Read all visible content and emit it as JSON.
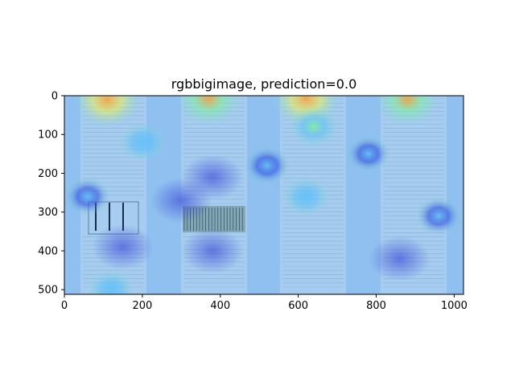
{
  "chart_data": {
    "type": "heatmap",
    "title": "rgbbigimage, prediction=0.0",
    "xlim": [
      0,
      1024
    ],
    "ylim": [
      512,
      0
    ],
    "x_ticks": [
      0,
      200,
      400,
      600,
      800,
      1000
    ],
    "y_ticks": [
      0,
      100,
      200,
      300,
      400,
      500
    ],
    "x_tick_labels": [
      "0",
      "200",
      "400",
      "600",
      "800",
      "1000"
    ],
    "y_tick_labels": [
      "0",
      "100",
      "200",
      "300",
      "400",
      "500"
    ],
    "colormap": "jet",
    "background_image": "four document pages side by side",
    "hotspots": [
      {
        "x": 110,
        "y": 10,
        "intensity": 0.95
      },
      {
        "x": 370,
        "y": 8,
        "intensity": 0.9
      },
      {
        "x": 620,
        "y": 8,
        "intensity": 0.95
      },
      {
        "x": 880,
        "y": 10,
        "intensity": 0.85
      },
      {
        "x": 640,
        "y": 80,
        "intensity": 0.55
      },
      {
        "x": 200,
        "y": 120,
        "intensity": 0.5
      },
      {
        "x": 60,
        "y": 260,
        "intensity": 0.45
      },
      {
        "x": 620,
        "y": 260,
        "intensity": 0.5
      },
      {
        "x": 960,
        "y": 310,
        "intensity": 0.45
      },
      {
        "x": 120,
        "y": 500,
        "intensity": 0.5
      },
      {
        "x": 520,
        "y": 180,
        "intensity": 0.45
      },
      {
        "x": 780,
        "y": 150,
        "intensity": 0.4
      }
    ],
    "coldspots": [
      {
        "x": 150,
        "y": 390
      },
      {
        "x": 380,
        "y": 210
      },
      {
        "x": 380,
        "y": 400
      },
      {
        "x": 860,
        "y": 420
      },
      {
        "x": 300,
        "y": 270
      }
    ],
    "grid": false
  }
}
